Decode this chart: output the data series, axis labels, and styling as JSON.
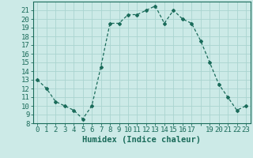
{
  "x": [
    0,
    1,
    2,
    3,
    4,
    5,
    6,
    7,
    8,
    9,
    10,
    11,
    12,
    13,
    14,
    15,
    16,
    17,
    18,
    19,
    20,
    21,
    22,
    23
  ],
  "y": [
    13,
    12,
    10.5,
    10,
    9.5,
    8.5,
    10,
    14.5,
    19.5,
    19.5,
    20.5,
    20.5,
    21,
    21.5,
    19.5,
    21,
    20,
    19.5,
    17.5,
    15,
    12.5,
    11,
    9.5,
    10
  ],
  "line_color": "#1a6b5a",
  "marker": "D",
  "marker_size": 2.0,
  "bg_color": "#cceae7",
  "grid_color": "#aad4d0",
  "xlabel": "Humidex (Indice chaleur)",
  "ylim": [
    8,
    22
  ],
  "xlim": [
    -0.5,
    23.5
  ],
  "yticks": [
    8,
    9,
    10,
    11,
    12,
    13,
    14,
    15,
    16,
    17,
    18,
    19,
    20,
    21
  ],
  "xtick_labels": [
    "0",
    "1",
    "2",
    "3",
    "4",
    "5",
    "6",
    "7",
    "8",
    "9",
    "10",
    "11",
    "12",
    "13",
    "14",
    "15",
    "16",
    "17",
    "",
    "19",
    "20",
    "21",
    "22",
    "23"
  ],
  "tick_fontsize": 6.5,
  "label_fontsize": 7.5,
  "tick_color": "#1a6b5a",
  "axis_color": "#1a6b5a"
}
